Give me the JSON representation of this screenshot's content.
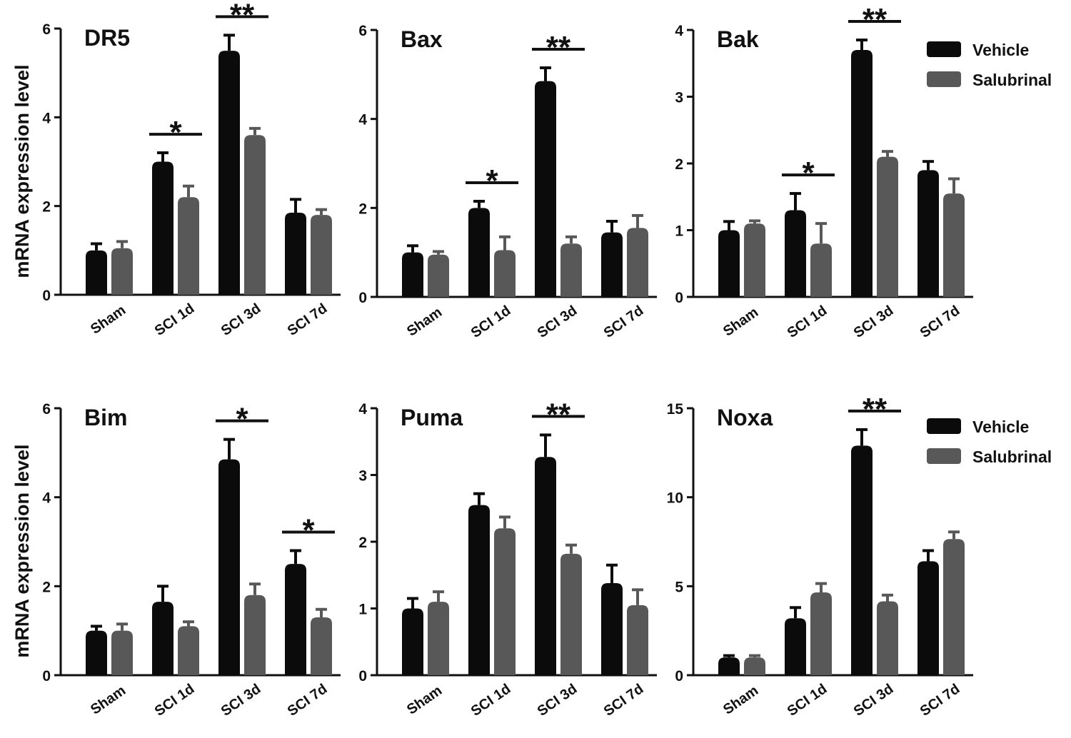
{
  "y_axis_label": "mRNA expression level",
  "legend": {
    "vehicle_label": "Vehicle",
    "salubrinal_label": "Salubrinal"
  },
  "colors": {
    "vehicle": "#0b0b0b",
    "salubrinal": "#585858",
    "axis": "#111111"
  },
  "chart_data": [
    {
      "type": "bar",
      "title": "DR5",
      "categories": [
        "Sham",
        "SCI 1d",
        "SCI 3d",
        "SCI 7d"
      ],
      "ylim": [
        0,
        6
      ],
      "yticks": [
        0,
        2,
        4,
        6
      ],
      "xlabel": "",
      "ylabel": "mRNA expression level",
      "series": [
        {
          "name": "Vehicle",
          "values": [
            1.0,
            3.0,
            5.5,
            1.85
          ],
          "errors": [
            0.15,
            0.2,
            0.35,
            0.3
          ]
        },
        {
          "name": "Salubrinal",
          "values": [
            1.05,
            2.2,
            3.6,
            1.8
          ],
          "errors": [
            0.15,
            0.25,
            0.15,
            0.12
          ]
        }
      ],
      "significance": [
        {
          "category": "SCI 1d",
          "label": "*"
        },
        {
          "category": "SCI 3d",
          "label": "**"
        }
      ]
    },
    {
      "type": "bar",
      "title": "Bax",
      "categories": [
        "Sham",
        "SCI 1d",
        "SCI 3d",
        "SCI 7d"
      ],
      "ylim": [
        0,
        6
      ],
      "yticks": [
        0,
        2,
        4,
        6
      ],
      "xlabel": "",
      "ylabel": "",
      "series": [
        {
          "name": "Vehicle",
          "values": [
            1.0,
            2.0,
            4.85,
            1.45
          ],
          "errors": [
            0.15,
            0.15,
            0.3,
            0.25
          ]
        },
        {
          "name": "Salubrinal",
          "values": [
            0.95,
            1.05,
            1.2,
            1.55
          ],
          "errors": [
            0.07,
            0.3,
            0.15,
            0.28
          ]
        }
      ],
      "significance": [
        {
          "category": "SCI 1d",
          "label": "*"
        },
        {
          "category": "SCI 3d",
          "label": "**"
        }
      ]
    },
    {
      "type": "bar",
      "title": "Bak",
      "categories": [
        "Sham",
        "SCI 1d",
        "SCI 3d",
        "SCI 7d"
      ],
      "ylim": [
        0,
        4
      ],
      "yticks": [
        0,
        1,
        2,
        3,
        4
      ],
      "xlabel": "",
      "ylabel": "",
      "series": [
        {
          "name": "Vehicle",
          "values": [
            1.0,
            1.3,
            3.7,
            1.9
          ],
          "errors": [
            0.13,
            0.25,
            0.15,
            0.13
          ]
        },
        {
          "name": "Salubrinal",
          "values": [
            1.1,
            0.8,
            2.1,
            1.55
          ],
          "errors": [
            0.04,
            0.3,
            0.08,
            0.22
          ]
        }
      ],
      "significance": [
        {
          "category": "SCI 1d",
          "label": "*"
        },
        {
          "category": "SCI 3d",
          "label": "**"
        }
      ]
    },
    {
      "type": "bar",
      "title": "Bim",
      "categories": [
        "Sham",
        "SCI 1d",
        "SCI 3d",
        "SCI 7d"
      ],
      "ylim": [
        0,
        6
      ],
      "yticks": [
        0,
        2,
        4,
        6
      ],
      "xlabel": "",
      "ylabel": "mRNA expression level",
      "series": [
        {
          "name": "Vehicle",
          "values": [
            1.0,
            1.65,
            4.85,
            2.5
          ],
          "errors": [
            0.1,
            0.35,
            0.45,
            0.3
          ]
        },
        {
          "name": "Salubrinal",
          "values": [
            1.0,
            1.1,
            1.8,
            1.3
          ],
          "errors": [
            0.15,
            0.1,
            0.25,
            0.18
          ]
        }
      ],
      "significance": [
        {
          "category": "SCI 3d",
          "label": "*"
        },
        {
          "category": "SCI 7d",
          "label": "*"
        }
      ]
    },
    {
      "type": "bar",
      "title": "Puma",
      "categories": [
        "Sham",
        "SCI 1d",
        "SCI 3d",
        "SCI 7d"
      ],
      "ylim": [
        0,
        4
      ],
      "yticks": [
        0,
        1,
        2,
        3,
        4
      ],
      "xlabel": "",
      "ylabel": "",
      "series": [
        {
          "name": "Vehicle",
          "values": [
            1.0,
            2.55,
            3.27,
            1.38
          ],
          "errors": [
            0.15,
            0.17,
            0.33,
            0.27
          ]
        },
        {
          "name": "Salubrinal",
          "values": [
            1.1,
            2.2,
            1.82,
            1.05
          ],
          "errors": [
            0.15,
            0.17,
            0.13,
            0.23
          ]
        }
      ],
      "significance": [
        {
          "category": "SCI 3d",
          "label": "**"
        }
      ]
    },
    {
      "type": "bar",
      "title": "Noxa",
      "categories": [
        "Sham",
        "SCI 1d",
        "SCI 3d",
        "SCI 7d"
      ],
      "ylim": [
        0,
        15
      ],
      "yticks": [
        0,
        5,
        10,
        15
      ],
      "xlabel": "",
      "ylabel": "",
      "series": [
        {
          "name": "Vehicle",
          "values": [
            1.0,
            3.2,
            12.9,
            6.4
          ],
          "errors": [
            0.1,
            0.6,
            0.9,
            0.6
          ]
        },
        {
          "name": "Salubrinal",
          "values": [
            1.0,
            4.65,
            4.15,
            7.65
          ],
          "errors": [
            0.1,
            0.5,
            0.35,
            0.4
          ]
        }
      ],
      "significance": [
        {
          "category": "SCI 3d",
          "label": "**"
        }
      ]
    }
  ]
}
